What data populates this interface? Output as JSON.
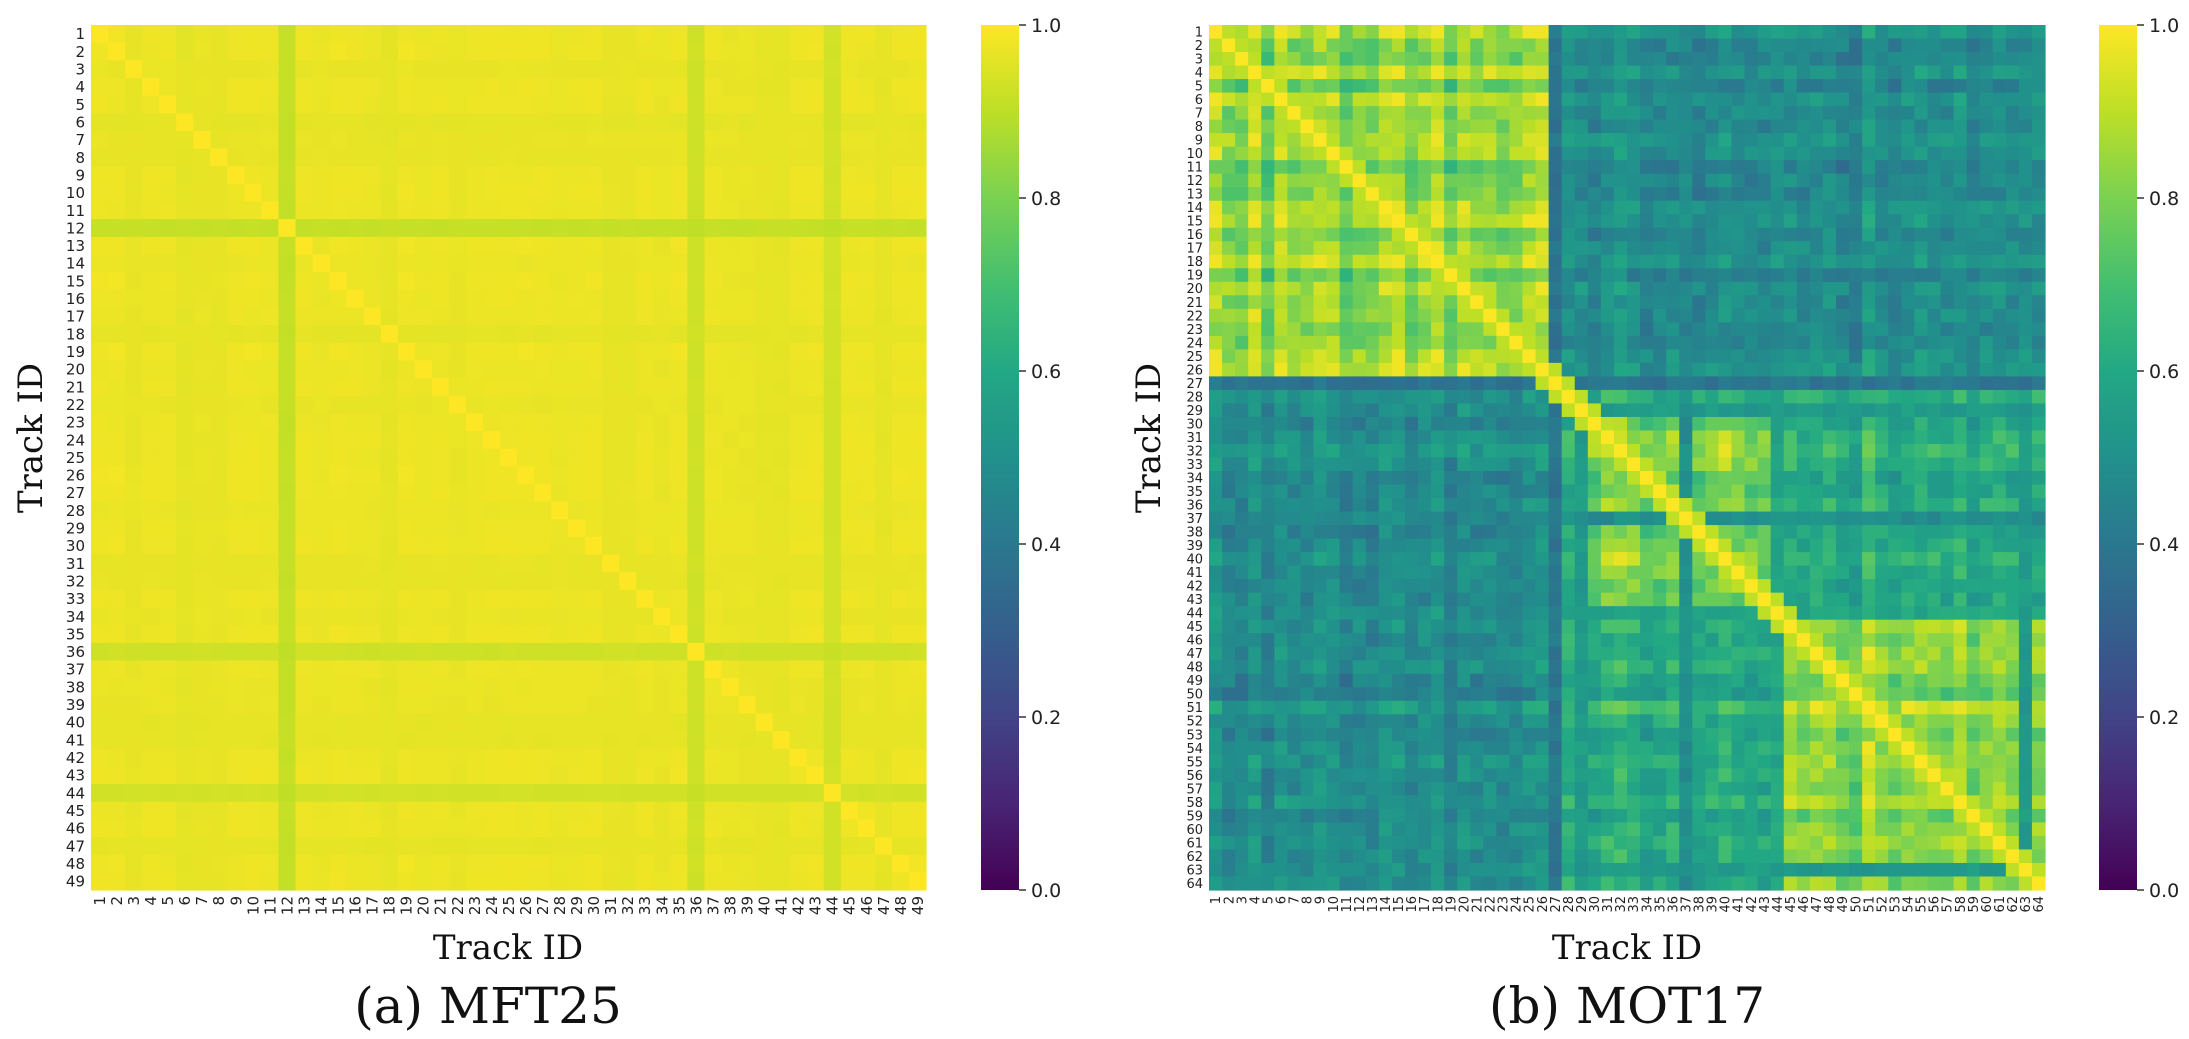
{
  "chart_data": [
    {
      "type": "heatmap",
      "caption": "(a) MFT25",
      "title": "",
      "xlabel": "Track ID",
      "ylabel": "Track ID",
      "n": 49,
      "categories": [
        "1",
        "2",
        "3",
        "4",
        "5",
        "6",
        "7",
        "8",
        "9",
        "10",
        "11",
        "12",
        "13",
        "14",
        "15",
        "16",
        "17",
        "18",
        "19",
        "20",
        "21",
        "22",
        "23",
        "24",
        "25",
        "26",
        "27",
        "28",
        "29",
        "30",
        "31",
        "32",
        "33",
        "34",
        "35",
        "36",
        "37",
        "38",
        "39",
        "40",
        "41",
        "42",
        "43",
        "44",
        "45",
        "46",
        "47",
        "48",
        "49"
      ],
      "value_range": [
        0.0,
        1.0
      ],
      "colormap": "viridis",
      "colorbar_ticks": [
        "0.0",
        "0.2",
        "0.4",
        "0.6",
        "0.8",
        "1.0"
      ],
      "base_similarity": 0.975,
      "diagonal_value": 1.0,
      "low_similarity_tracks": [
        {
          "track": 12,
          "value": 0.915
        },
        {
          "track": 36,
          "value": 0.93
        },
        {
          "track": 44,
          "value": 0.935
        }
      ]
    },
    {
      "type": "heatmap",
      "caption": "(b) MOT17",
      "title": "",
      "xlabel": "Track ID",
      "ylabel": "Track ID",
      "n": 64,
      "categories": [
        "1",
        "2",
        "3",
        "4",
        "5",
        "6",
        "7",
        "8",
        "9",
        "10",
        "11",
        "12",
        "13",
        "14",
        "15",
        "16",
        "17",
        "18",
        "19",
        "20",
        "21",
        "22",
        "23",
        "24",
        "25",
        "26",
        "27",
        "28",
        "29",
        "30",
        "31",
        "32",
        "33",
        "34",
        "35",
        "36",
        "37",
        "38",
        "39",
        "40",
        "41",
        "42",
        "43",
        "44",
        "45",
        "46",
        "47",
        "48",
        "49",
        "50",
        "51",
        "52",
        "53",
        "54",
        "55",
        "56",
        "57",
        "58",
        "59",
        "60",
        "61",
        "62",
        "63",
        "64"
      ],
      "value_range": [
        0.0,
        1.0
      ],
      "colormap": "viridis",
      "colorbar_ticks": [
        "0.0",
        "0.2",
        "0.4",
        "0.6",
        "0.8",
        "1.0"
      ],
      "diagonal_value": 1.0,
      "track_groups": [
        {
          "tracks": "1-26",
          "within_group_similarity": 0.85
        },
        {
          "tracks": "30-43",
          "within_group_similarity": 0.87
        },
        {
          "tracks": "44-64",
          "within_group_similarity": 0.86
        }
      ],
      "between_group_similarity": 0.55,
      "low_similarity_tracks": [
        {
          "track": 27,
          "value": 0.35
        },
        {
          "track": 29,
          "value": 0.5
        },
        {
          "track": 37,
          "value": 0.45
        },
        {
          "track": 44,
          "value": 0.55
        },
        {
          "track": 63,
          "value": 0.5
        }
      ]
    }
  ]
}
